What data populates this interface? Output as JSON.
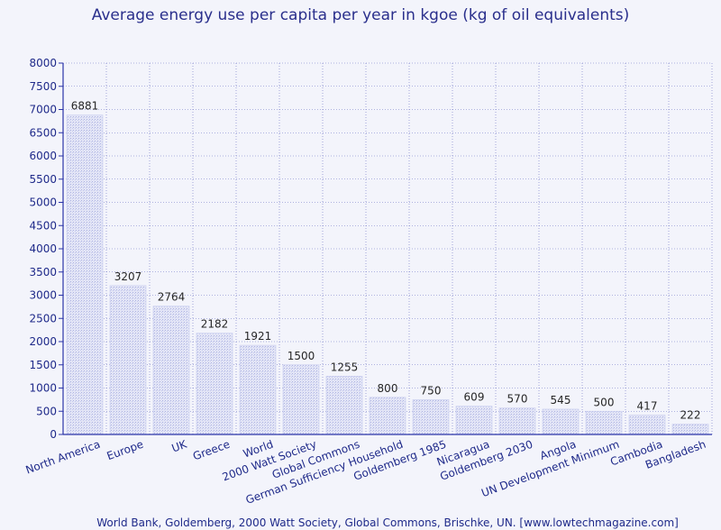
{
  "chart_data": {
    "type": "bar",
    "title": "Average energy use per capita per year in kgoe (kg of oil equivalents)",
    "source": "World Bank, Goldemberg, 2000 Watt Society, Global Commons, Brischke, UN. [www.lowtechmagazine.com]",
    "xlabel": "",
    "ylabel": "",
    "ylim": [
      0,
      8000
    ],
    "yticks": [
      "0",
      "500",
      "1000",
      "1500",
      "2000",
      "2500",
      "3000",
      "3500",
      "4000",
      "4500",
      "5000",
      "5500",
      "6000",
      "6500",
      "7000",
      "7500",
      "8000"
    ],
    "grid": true,
    "categories": [
      "North America",
      "Europe",
      "UK",
      "Greece",
      "World",
      "2000 Watt Society",
      "Global Commons",
      "German Sufficiency Household",
      "Goldemberg 1985",
      "Nicaragua",
      "Goldemberg 2030",
      "Angola",
      "UN Development Minimum",
      "Cambodia",
      "Bangladesh"
    ],
    "values": [
      6881,
      3207,
      2764,
      2182,
      1921,
      1500,
      1255,
      800,
      750,
      609,
      570,
      545,
      500,
      417,
      222
    ],
    "value_labels": [
      "6881",
      "3207",
      "2764",
      "2182",
      "1921",
      "1500",
      "1255",
      "800",
      "750",
      "609",
      "570",
      "545",
      "500",
      "417",
      "222"
    ],
    "colors": {
      "bar_fill": "#d9dcf2",
      "bar_pattern": "#b9bee6",
      "axis": "#2b34a8",
      "grid": "#6a70c4",
      "text": "#1f2a8a"
    }
  }
}
